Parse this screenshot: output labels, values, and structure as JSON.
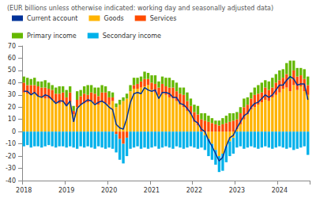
{
  "chart_data": {
    "type": "bar",
    "stacked": true,
    "title": "(EUR billions unless otherwise indicated: working day and seasonally adjusted data)",
    "categories": [
      "2018",
      null,
      null,
      null,
      null,
      null,
      null,
      null,
      null,
      null,
      null,
      null,
      "2019",
      null,
      null,
      null,
      null,
      null,
      null,
      null,
      null,
      null,
      null,
      null,
      "2020",
      null,
      null,
      null,
      null,
      null,
      null,
      null,
      null,
      null,
      null,
      null,
      "2021",
      null,
      null,
      null,
      null,
      null,
      null,
      null,
      null,
      null,
      null,
      null,
      "2022",
      null,
      null,
      null,
      null,
      null,
      null,
      null,
      null,
      null,
      null,
      null,
      "2023",
      null,
      null,
      null,
      null,
      null,
      null,
      null,
      null,
      null,
      null,
      null,
      "2024",
      null,
      null,
      null,
      null,
      null,
      null,
      null,
      null
    ],
    "series": [
      {
        "name": "Current account",
        "type": "line",
        "color": "#003299",
        "marker": "none",
        "line_style": "solid",
        "values": [
          33,
          33,
          30,
          32,
          29,
          28,
          30,
          29,
          26,
          23,
          25,
          25,
          21,
          25,
          8,
          19,
          22,
          24,
          26,
          25,
          22,
          24,
          25,
          23,
          20,
          18,
          6,
          3,
          2,
          11,
          24,
          31,
          32,
          31,
          36,
          34,
          33,
          34,
          27,
          32,
          32,
          31,
          28,
          28,
          23,
          22,
          19,
          15,
          9,
          7,
          2,
          0,
          -7,
          -12,
          -18,
          -24,
          -21,
          -12,
          -5,
          -3,
          3,
          8,
          13,
          15,
          20,
          23,
          24,
          27,
          30,
          28,
          30,
          34,
          38,
          38,
          42,
          45,
          43,
          38,
          39,
          39,
          26
        ]
      },
      {
        "name": "Goods",
        "type": "bar",
        "color": "#ffb400",
        "values": [
          32,
          31,
          30,
          31,
          29,
          28,
          27,
          27,
          26,
          24,
          23,
          24,
          22,
          24,
          14,
          20,
          22,
          23,
          24,
          25,
          23,
          22,
          24,
          23,
          22,
          25,
          20,
          22,
          25,
          27,
          33,
          35,
          35,
          36,
          37,
          38,
          34,
          32,
          30,
          31,
          30,
          28,
          27,
          25,
          22,
          20,
          17,
          14,
          8,
          5,
          0,
          -3,
          -6,
          -10,
          -15,
          -20,
          -18,
          -12,
          -8,
          -5,
          2,
          6,
          10,
          14,
          18,
          20,
          22,
          24,
          26,
          25,
          28,
          30,
          32,
          35,
          36,
          33,
          38,
          34,
          37,
          33,
          30
        ]
      },
      {
        "name": "Services",
        "type": "bar",
        "color": "#ff4b00",
        "values": [
          8,
          7,
          8,
          7,
          8,
          8,
          9,
          8,
          8,
          7,
          8,
          8,
          6,
          8,
          3,
          6,
          7,
          8,
          6,
          7,
          8,
          7,
          8,
          9,
          6,
          3,
          -2,
          -6,
          -10,
          -5,
          0,
          3,
          4,
          5,
          6,
          5,
          6,
          7,
          6,
          8,
          7,
          8,
          9,
          8,
          9,
          10,
          8,
          7,
          8,
          9,
          10,
          9,
          8,
          7,
          6,
          5,
          6,
          7,
          8,
          9,
          8,
          9,
          10,
          8,
          9,
          10,
          9,
          8,
          10,
          9,
          8,
          10,
          10,
          9,
          11,
          10,
          12,
          11,
          9,
          10,
          8
        ]
      },
      {
        "name": "Primary income",
        "type": "bar",
        "color": "#65b800",
        "values": [
          5,
          6,
          5,
          6,
          4,
          5,
          6,
          5,
          4,
          5,
          6,
          5,
          6,
          5,
          4,
          7,
          5,
          6,
          8,
          6,
          5,
          7,
          6,
          5,
          5,
          4,
          3,
          4,
          3,
          4,
          5,
          6,
          5,
          4,
          6,
          5,
          6,
          7,
          5,
          6,
          7,
          8,
          6,
          7,
          5,
          6,
          7,
          6,
          6,
          7,
          5,
          6,
          5,
          4,
          3,
          4,
          5,
          6,
          7,
          6,
          6,
          5,
          7,
          6,
          5,
          6,
          7,
          8,
          6,
          7,
          8,
          7,
          8,
          7,
          9,
          15,
          8,
          7,
          6,
          8,
          7
        ]
      },
      {
        "name": "Secondary income",
        "type": "bar",
        "color": "#00b1ea",
        "values": [
          -12,
          -11,
          -13,
          -12,
          -12,
          -13,
          -12,
          -11,
          -12,
          -13,
          -12,
          -12,
          -13,
          -12,
          -13,
          -14,
          -12,
          -13,
          -12,
          -13,
          -14,
          -12,
          -13,
          -14,
          -13,
          -14,
          -15,
          -17,
          -16,
          -15,
          -14,
          -13,
          -12,
          -14,
          -13,
          -14,
          -13,
          -12,
          -14,
          -13,
          -12,
          -13,
          -14,
          -12,
          -13,
          -14,
          -13,
          -12,
          -13,
          -14,
          -13,
          -12,
          -14,
          -13,
          -12,
          -13,
          -14,
          -13,
          -12,
          -13,
          -13,
          -12,
          -14,
          -13,
          -12,
          -13,
          -14,
          -13,
          -12,
          -13,
          -14,
          -13,
          -12,
          -13,
          -14,
          -13,
          -15,
          -14,
          -13,
          -12,
          -19
        ]
      }
    ],
    "ylim": [
      -40,
      70
    ],
    "yticks": [
      -40,
      -30,
      -20,
      -10,
      0,
      10,
      20,
      30,
      40,
      50,
      60,
      70
    ],
    "grid": false,
    "legend": "upper left"
  }
}
